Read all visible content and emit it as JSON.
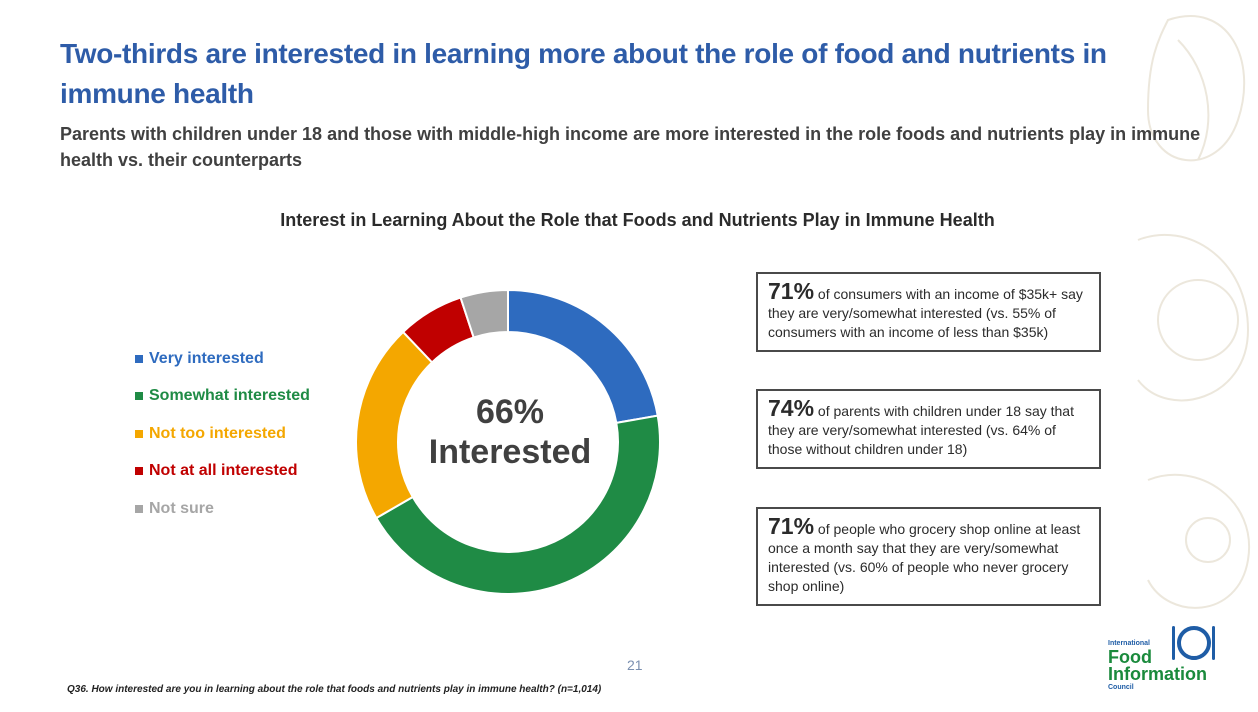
{
  "title": "Two-thirds are interested in learning more about the role of food and nutrients in immune health",
  "subtitle": "Parents with children under 18 and those with middle-high income are more interested in the role foods and nutrients play in immune health vs. their counterparts",
  "chart_data": {
    "type": "pie",
    "title": "Interest in Learning About the Role that Foods and Nutrients Play in Immune Health",
    "categories": [
      "Very interested",
      "Somewhat interested",
      "Not too interested",
      "Not at all interested",
      "Not sure"
    ],
    "values": [
      22,
      44,
      21,
      7,
      5
    ],
    "colors": [
      "#2e6bbf",
      "#1f8b45",
      "#f4a700",
      "#c00000",
      "#a6a6a6"
    ],
    "center_value": "66%",
    "center_label": "Interested",
    "legend_position": "left"
  },
  "callouts": [
    {
      "stat": "71%",
      "text": " of consumers with an income of $35k+ say they are very/somewhat interested (vs. 55% of consumers with an income of less than $35k)"
    },
    {
      "stat": "74%",
      "text": " of parents with children under 18 say that they are very/somewhat interested (vs. 64% of those without children under 18)"
    },
    {
      "stat": "71%",
      "text": " of people who grocery shop online at least once a month say that they are very/somewhat interested (vs. 60% of people who never grocery shop online)"
    }
  ],
  "page_number": "21",
  "footnote": "Q36. How interested are you in learning about the role that foods and nutrients play in immune health? (n=1,014)",
  "logo": {
    "line1": "International",
    "line2": "Food",
    "line3": "Information",
    "line4": "Council"
  }
}
